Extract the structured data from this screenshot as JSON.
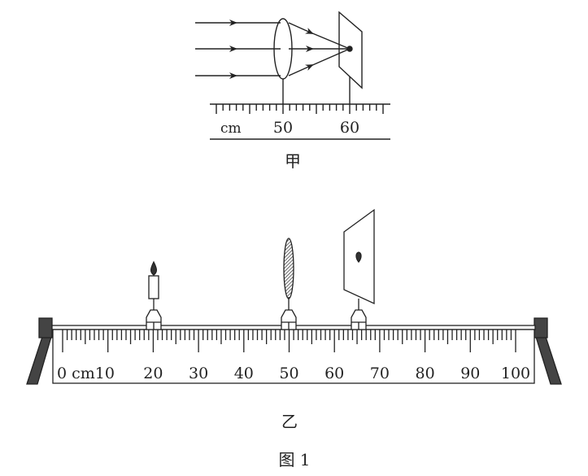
{
  "figure_a": {
    "caption": "甲",
    "unit": "cm",
    "tick_labels": [
      "50",
      "60"
    ],
    "lens_position_cm": 50,
    "screen_position_cm": 60
  },
  "figure_b": {
    "caption": "乙",
    "tick_labels": [
      "0 cm10",
      "20",
      "30",
      "40",
      "50",
      "60",
      "70",
      "80",
      "90",
      "100"
    ],
    "candle_position_cm": 20,
    "lens_position_cm": 50,
    "screen_position_cm": 65
  },
  "figure_title": "图 1",
  "colors": {
    "ink": "#222222",
    "end_block": "#444444"
  }
}
